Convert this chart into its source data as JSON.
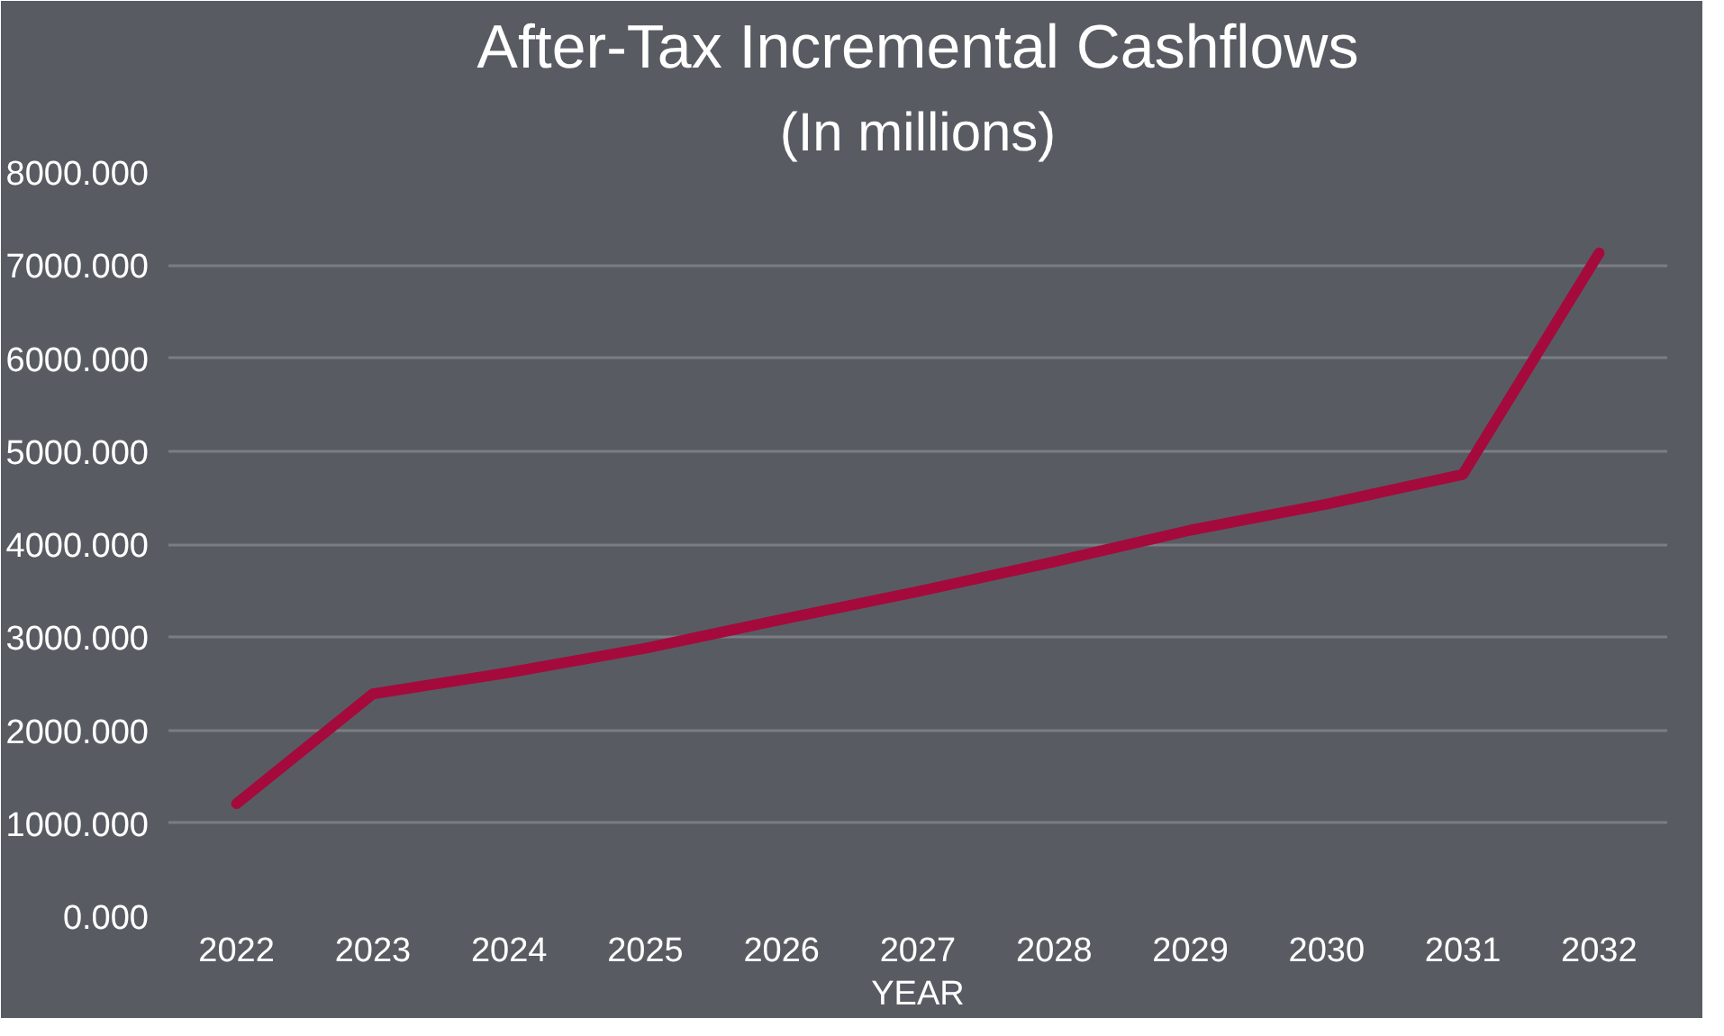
{
  "chart_data": {
    "type": "line",
    "title": "After-Tax Incremental Cashflows",
    "subtitle": "(In millions)",
    "xlabel": "YEAR",
    "categories": [
      "2022",
      "2023",
      "2024",
      "2025",
      "2026",
      "2027",
      "2028",
      "2029",
      "2030",
      "2031",
      "2032"
    ],
    "series": [
      {
        "color": "#a50a3c",
        "values": [
          1210,
          2390,
          2620,
          2880,
          3190,
          3490,
          3810,
          4150,
          4430,
          4750,
          7130
        ]
      }
    ],
    "ylim": [
      0,
      8000
    ],
    "yticks": [
      {
        "value": 0,
        "label": "0.000"
      },
      {
        "value": 1000,
        "label": "1000.000"
      },
      {
        "value": 2000,
        "label": "2000.000"
      },
      {
        "value": 3000,
        "label": "3000.000"
      },
      {
        "value": 4000,
        "label": "4000.000"
      },
      {
        "value": 5000,
        "label": "5000.000"
      },
      {
        "value": 6000,
        "label": "6000.000"
      },
      {
        "value": 7000,
        "label": "7000.000"
      },
      {
        "value": 8000,
        "label": "8000.000"
      }
    ],
    "grid": "y",
    "marker": "none",
    "line_style": "solid"
  }
}
